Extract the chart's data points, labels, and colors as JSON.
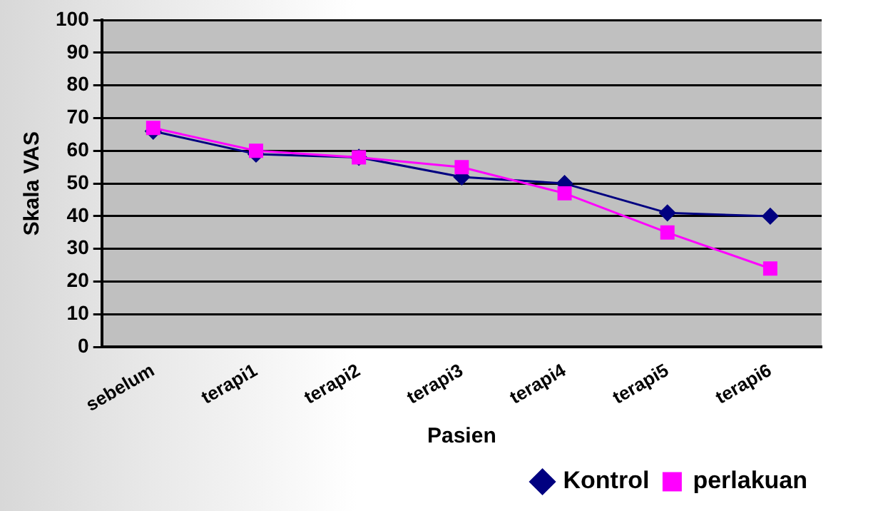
{
  "chart_data": {
    "type": "line",
    "xlabel": "Pasien",
    "ylabel": "Skala VAS",
    "categories": [
      "sebelum",
      "terapi1",
      "terapi2",
      "terapi3",
      "terapi4",
      "terapi5",
      "terapi6"
    ],
    "series": [
      {
        "name": "Kontrol",
        "color": "#000080",
        "marker": "diamond",
        "values": [
          66,
          59,
          58,
          52,
          50,
          41,
          40
        ]
      },
      {
        "name": "perlakuan",
        "color": "#ff00ff",
        "marker": "square",
        "values": [
          67,
          60,
          58,
          55,
          47,
          35,
          24
        ]
      }
    ],
    "ylim": [
      0,
      100
    ],
    "yticks": [
      0,
      10,
      20,
      30,
      40,
      50,
      60,
      70,
      80,
      90,
      100
    ],
    "grid": "y",
    "legend": "bottom right"
  }
}
